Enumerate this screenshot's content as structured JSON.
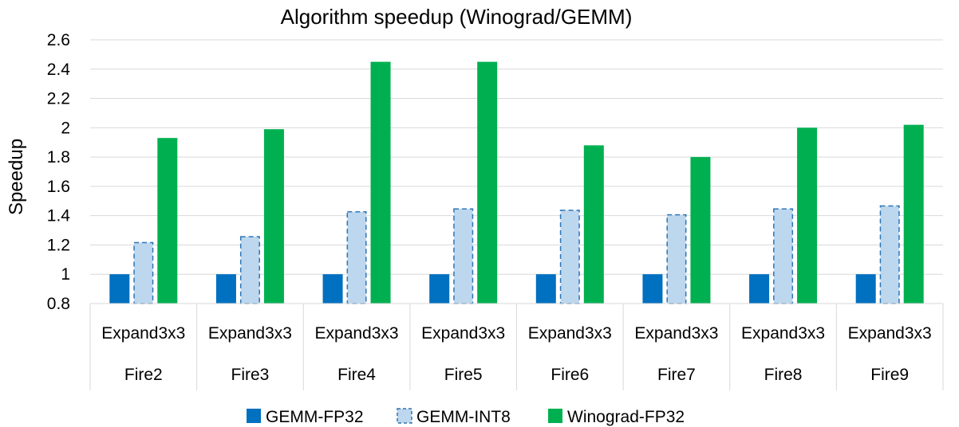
{
  "chart_data": {
    "type": "bar",
    "title": "Algorithm speedup (Winograd/GEMM)",
    "ylabel": "Speedup",
    "xlabel": "",
    "ylim": [
      0.8,
      2.6
    ],
    "yticks": [
      0.8,
      1,
      1.2,
      1.4,
      1.6,
      1.8,
      2,
      2.2,
      2.4,
      2.6
    ],
    "ytick_labels": [
      "0.8",
      "1",
      "1.2",
      "1.4",
      "1.6",
      "1.8",
      "2",
      "2.2",
      "2.4",
      "2.6"
    ],
    "grid": true,
    "legend_position": "bottom",
    "categories": [
      {
        "sub": "Expand3x3",
        "group": "Fire2"
      },
      {
        "sub": "Expand3x3",
        "group": "Fire3"
      },
      {
        "sub": "Expand3x3",
        "group": "Fire4"
      },
      {
        "sub": "Expand3x3",
        "group": "Fire5"
      },
      {
        "sub": "Expand3x3",
        "group": "Fire6"
      },
      {
        "sub": "Expand3x3",
        "group": "Fire7"
      },
      {
        "sub": "Expand3x3",
        "group": "Fire8"
      },
      {
        "sub": "Expand3x3",
        "group": "Fire9"
      }
    ],
    "series": [
      {
        "name": "GEMM-FP32",
        "color": "#0070C0",
        "style": "solid",
        "values": [
          1.0,
          1.0,
          1.0,
          1.0,
          1.0,
          1.0,
          1.0,
          1.0
        ]
      },
      {
        "name": "GEMM-INT8",
        "color": "#BDD7EE",
        "style": "dashed",
        "values": [
          1.22,
          1.26,
          1.43,
          1.45,
          1.44,
          1.41,
          1.45,
          1.47
        ]
      },
      {
        "name": "Winograd-FP32",
        "color": "#00B050",
        "style": "solid",
        "values": [
          1.93,
          1.99,
          2.45,
          2.45,
          1.88,
          1.8,
          2.0,
          2.02
        ]
      }
    ]
  }
}
